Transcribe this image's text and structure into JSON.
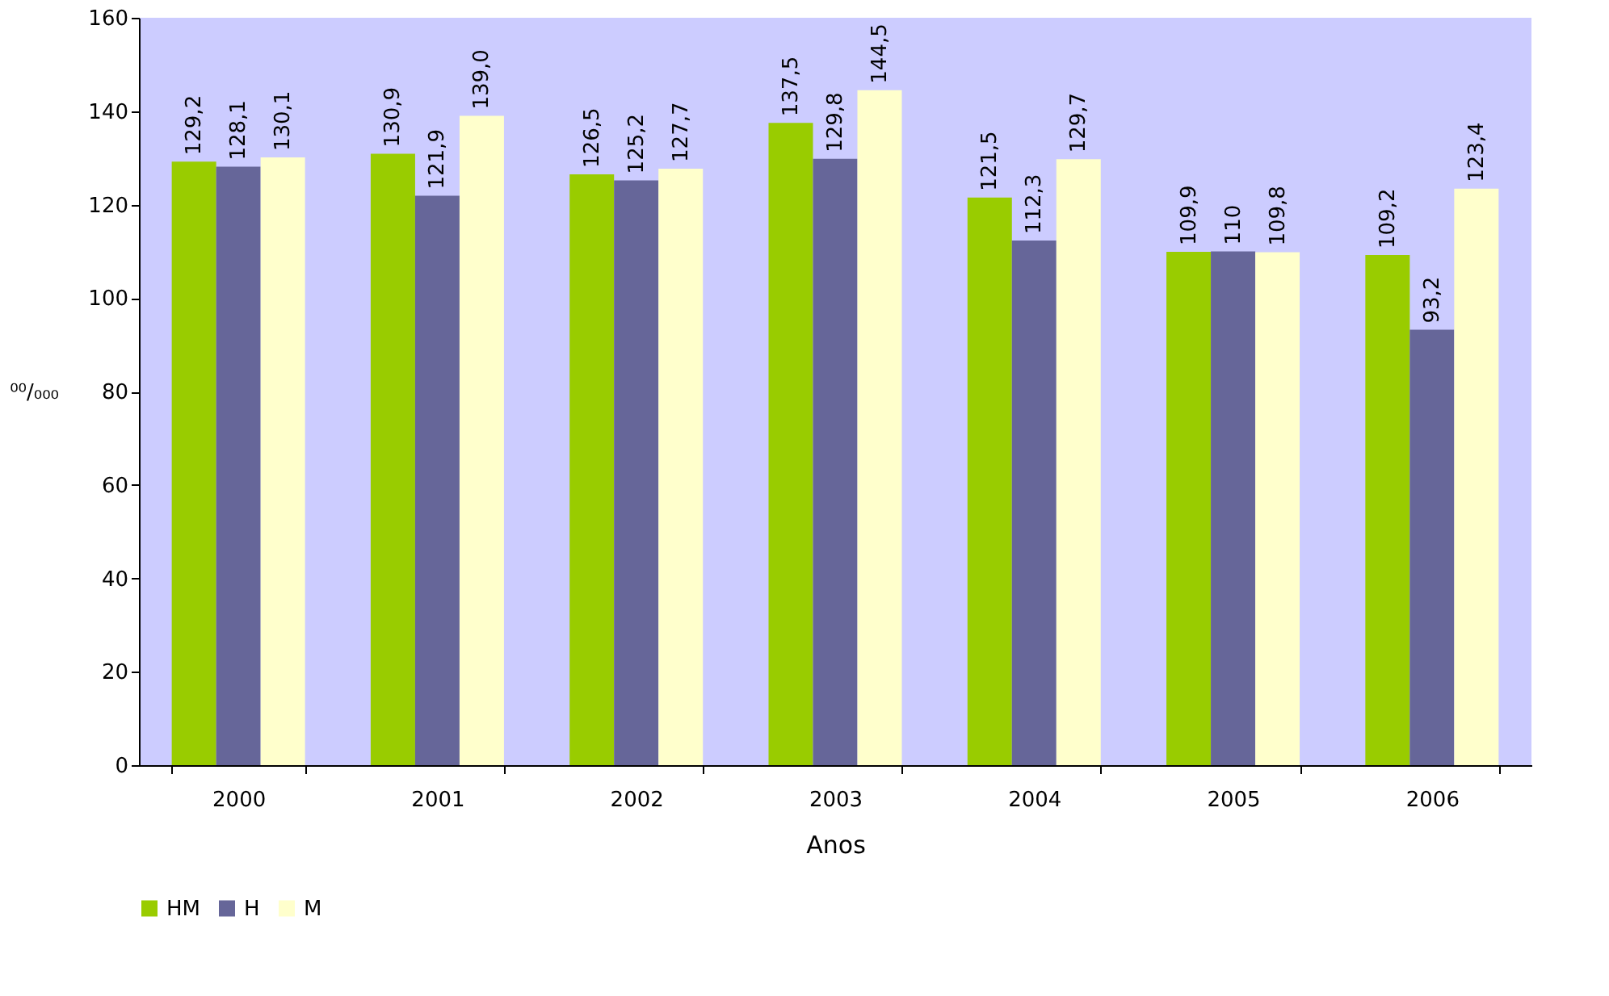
{
  "chart_data": {
    "type": "bar",
    "xlabel": "Anos",
    "ylabel": "⁰⁰/₀₀₀",
    "categories": [
      "2000",
      "2001",
      "2002",
      "2003",
      "2004",
      "2005",
      "2006"
    ],
    "series": [
      {
        "name": "HM",
        "color": "#99cc00",
        "values": [
          129.2,
          130.9,
          126.5,
          137.5,
          121.5,
          109.9,
          109.2
        ],
        "value_labels": [
          "129,2",
          "130,9",
          "126,5",
          "137,5",
          "121,5",
          "109,9",
          "109,2"
        ]
      },
      {
        "name": "H",
        "color": "#666699",
        "values": [
          128.1,
          121.9,
          125.2,
          129.8,
          112.3,
          110,
          93.2
        ],
        "value_labels": [
          "128,1",
          "121,9",
          "125,2",
          "129,8",
          "112,3",
          "110",
          "93,2"
        ]
      },
      {
        "name": "M",
        "color": "#ffffcc",
        "values": [
          130.1,
          139.0,
          127.7,
          144.5,
          129.7,
          109.8,
          123.4
        ],
        "value_labels": [
          "130,1",
          "139,0",
          "127,7",
          "144,5",
          "129,7",
          "109,8",
          "123,4"
        ]
      }
    ],
    "ylim": [
      0,
      160
    ],
    "yticks": [
      0,
      20,
      40,
      60,
      80,
      100,
      120,
      140,
      160
    ],
    "grid": false,
    "legend": "bottom"
  }
}
